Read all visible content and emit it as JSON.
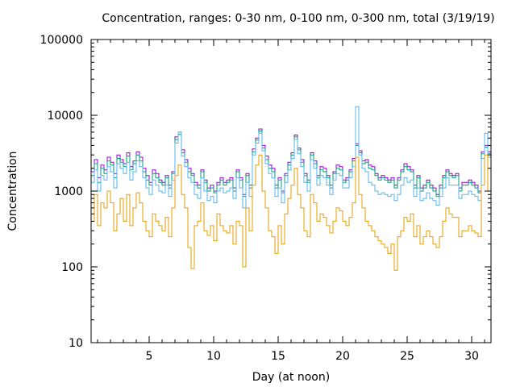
{
  "chart_data": {
    "type": "line",
    "title": "Concentration, ranges: 0-30 nm, 0-100 nm, 0-300 nm, total (3/19/19)",
    "xlabel": "Day (at noon)",
    "ylabel": "Concentration",
    "xlim": [
      0.5,
      31.5
    ],
    "ylim": [
      10,
      100000
    ],
    "yscale": "log",
    "grid": false,
    "legend": "none",
    "x_ticks": [
      5,
      10,
      15,
      20,
      25,
      30
    ],
    "x_tick_labels": [
      "5",
      "10",
      "15",
      "20",
      "25",
      "30"
    ],
    "y_ticks": [
      10,
      100,
      1000,
      10000,
      100000
    ],
    "y_tick_labels": [
      "10",
      "100",
      "1000",
      "10000",
      "100000"
    ],
    "x": [
      0.5,
      0.75,
      1,
      1.25,
      1.5,
      1.75,
      2,
      2.25,
      2.5,
      2.75,
      3,
      3.25,
      3.5,
      3.75,
      4,
      4.25,
      4.5,
      4.75,
      5,
      5.25,
      5.5,
      5.75,
      6,
      6.25,
      6.5,
      6.75,
      7,
      7.25,
      7.5,
      7.75,
      8,
      8.25,
      8.5,
      8.75,
      9,
      9.25,
      9.5,
      9.75,
      10,
      10.25,
      10.5,
      10.75,
      11,
      11.25,
      11.5,
      11.75,
      12,
      12.25,
      12.5,
      12.75,
      13,
      13.25,
      13.5,
      13.75,
      14,
      14.25,
      14.5,
      14.75,
      15,
      15.25,
      15.5,
      15.75,
      16,
      16.25,
      16.5,
      16.75,
      17,
      17.25,
      17.5,
      17.75,
      18,
      18.25,
      18.5,
      18.75,
      19,
      19.25,
      19.5,
      19.75,
      20,
      20.25,
      20.5,
      20.75,
      21,
      21.25,
      21.5,
      21.75,
      22,
      22.25,
      22.5,
      22.75,
      23,
      23.25,
      23.5,
      23.75,
      24,
      24.25,
      24.5,
      24.75,
      25,
      25.25,
      25.5,
      25.75,
      26,
      26.25,
      26.5,
      26.75,
      27,
      27.25,
      27.5,
      27.75,
      28,
      28.25,
      28.5,
      28.75,
      29,
      29.25,
      29.5,
      29.75,
      30,
      30.25,
      30.5,
      30.75,
      31,
      31.25,
      31.5
    ],
    "series": [
      {
        "name": "total",
        "color": "#9400d3",
        "values": [
          1800,
          2600,
          1500,
          2200,
          1900,
          2800,
          2400,
          1700,
          3000,
          2600,
          2300,
          3200,
          2100,
          2500,
          3300,
          2800,
          2000,
          1600,
          1300,
          1900,
          1700,
          1400,
          1300,
          1600,
          1200,
          1800,
          5200,
          6000,
          3500,
          2600,
          2000,
          1700,
          1300,
          1200,
          1900,
          1400,
          1100,
          1200,
          1000,
          1300,
          1500,
          1300,
          1400,
          1500,
          1100,
          1900,
          1500,
          900,
          1700,
          1200,
          3600,
          5000,
          6600,
          4000,
          2900,
          2200,
          2000,
          1200,
          1500,
          1000,
          1700,
          2400,
          3200,
          5500,
          3700,
          2600,
          1700,
          1400,
          3200,
          2500,
          1600,
          2100,
          2000,
          1600,
          1200,
          1800,
          2200,
          2100,
          1400,
          1500,
          1900,
          2700,
          4200,
          3400,
          2500,
          2600,
          2200,
          2100,
          1700,
          1500,
          1600,
          1500,
          1400,
          1500,
          1200,
          1500,
          1900,
          2300,
          2100,
          1900,
          1200,
          1600,
          1100,
          1200,
          1400,
          1200,
          1100,
          900,
          1200,
          1600,
          1900,
          1700,
          1600,
          1700,
          1100,
          1300,
          1300,
          1400,
          1300,
          1200,
          1000,
          3300,
          4000,
          3300,
          3100,
          2700,
          2900,
          3200
        ]
      },
      {
        "name": "0-300 nm",
        "color": "#009e73",
        "values": [
          1600,
          2300,
          1300,
          2000,
          1700,
          2500,
          2200,
          1500,
          2700,
          2400,
          2100,
          2900,
          1900,
          2300,
          3000,
          2500,
          1800,
          1400,
          1200,
          1700,
          1500,
          1300,
          1200,
          1500,
          1100,
          1700,
          4800,
          5600,
          3200,
          2400,
          1800,
          1600,
          1200,
          1100,
          1800,
          1300,
          1000,
          1100,
          950,
          1200,
          1400,
          1200,
          1300,
          1400,
          1000,
          1800,
          1400,
          850,
          1600,
          1100,
          3300,
          4700,
          6200,
          3700,
          2600,
          2000,
          1800,
          1100,
          1400,
          950,
          1600,
          2200,
          3000,
          5200,
          3500,
          2400,
          1600,
          1300,
          3000,
          2300,
          1500,
          1900,
          1800,
          1500,
          1100,
          1700,
          2000,
          1900,
          1300,
          1400,
          1800,
          2500,
          4000,
          3200,
          2300,
          2400,
          2000,
          1900,
          1600,
          1400,
          1500,
          1400,
          1300,
          1400,
          1100,
          1400,
          1800,
          2100,
          1900,
          1800,
          1100,
          1500,
          1000,
          1100,
          1300,
          1100,
          1000,
          850,
          1100,
          1500,
          1800,
          1600,
          1500,
          1600,
          1000,
          1200,
          1200,
          1300,
          1200,
          1100,
          950,
          3100,
          3800,
          3100,
          2900,
          2500,
          2700,
          3000
        ]
      },
      {
        "name": "0-100 nm",
        "color": "#56b4e9",
        "values": [
          1300,
          1900,
          1000,
          1600,
          1400,
          2100,
          1800,
          1100,
          2300,
          2000,
          1700,
          2400,
          1400,
          1800,
          2500,
          2100,
          1500,
          1100,
          900,
          1400,
          1200,
          1000,
          950,
          1200,
          850,
          1400,
          4300,
          6000,
          2900,
          2100,
          1500,
          1300,
          900,
          800,
          1500,
          1000,
          750,
          850,
          700,
          1000,
          1100,
          950,
          1000,
          1100,
          800,
          1500,
          1100,
          600,
          1300,
          850,
          3000,
          4300,
          5800,
          3400,
          2300,
          1700,
          1500,
          850,
          1100,
          700,
          1300,
          1900,
          2700,
          4800,
          3100,
          2100,
          1300,
          1000,
          2600,
          2000,
          1200,
          1600,
          1500,
          1200,
          900,
          1400,
          1700,
          1600,
          1100,
          1100,
          1500,
          2100,
          13000,
          3000,
          2000,
          1800,
          1300,
          1200,
          1000,
          900,
          950,
          900,
          850,
          900,
          750,
          900,
          1200,
          1500,
          1300,
          1400,
          850,
          1100,
          750,
          800,
          950,
          800,
          750,
          650,
          850,
          1100,
          1500,
          1200,
          1200,
          1200,
          800,
          900,
          900,
          1000,
          900,
          850,
          750,
          2700,
          5800,
          2800,
          2300,
          2000,
          2200,
          2400
        ]
      },
      {
        "name": "0-30 nm",
        "color": "#e69f00",
        "values": [
          400,
          900,
          350,
          700,
          600,
          1000,
          700,
          300,
          500,
          800,
          400,
          900,
          350,
          600,
          950,
          700,
          400,
          300,
          250,
          500,
          400,
          350,
          300,
          450,
          250,
          600,
          1600,
          2200,
          900,
          600,
          180,
          95,
          350,
          400,
          700,
          300,
          260,
          350,
          220,
          500,
          350,
          300,
          280,
          350,
          200,
          400,
          350,
          100,
          600,
          300,
          1200,
          2200,
          3000,
          1000,
          600,
          300,
          250,
          150,
          350,
          200,
          500,
          800,
          1200,
          2000,
          900,
          600,
          300,
          250,
          900,
          700,
          400,
          500,
          450,
          350,
          280,
          400,
          600,
          550,
          400,
          350,
          450,
          700,
          2800,
          900,
          600,
          400,
          350,
          300,
          250,
          220,
          200,
          180,
          150,
          200,
          90,
          250,
          300,
          450,
          400,
          500,
          250,
          350,
          200,
          250,
          300,
          250,
          200,
          180,
          250,
          400,
          600,
          500,
          450,
          450,
          250,
          300,
          300,
          350,
          300,
          280,
          250,
          1200,
          3000,
          1000,
          800,
          650,
          700,
          400
        ]
      }
    ]
  }
}
